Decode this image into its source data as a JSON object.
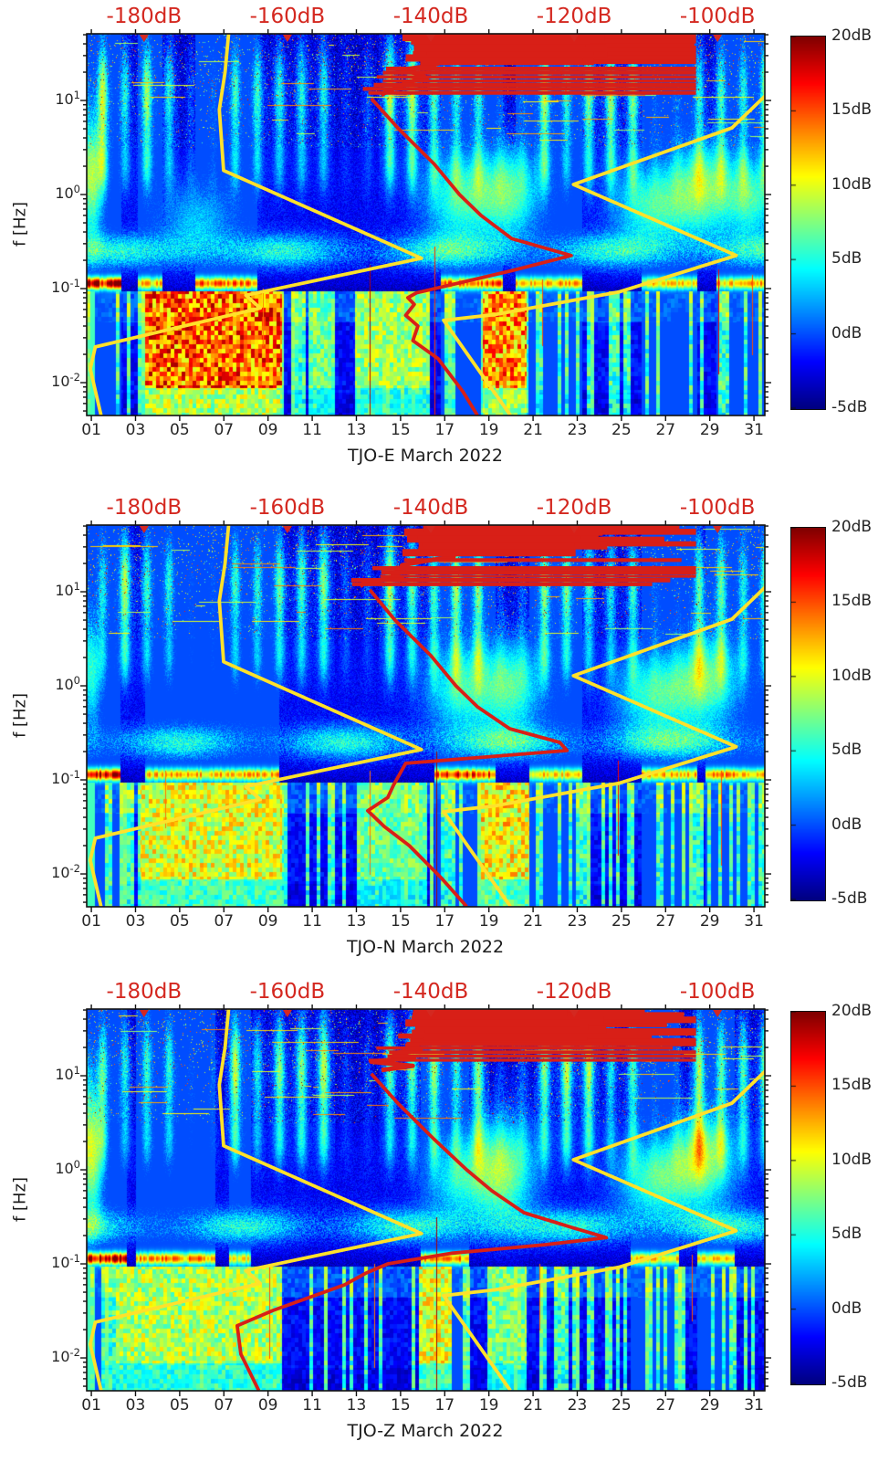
{
  "figure": {
    "description": "Seismic noise power spectrograms for station TJO components E, N, Z, March 2022, with New Low/High Noise Model curves (yellow) and station median PSD (red) plotted against the top dB axis."
  },
  "colors": {
    "top_axis_red": "#d42820",
    "curve_red": "#d81f17",
    "curve_yellow": "#ffe12b",
    "axis_text": "#262626",
    "spine": "#111111"
  },
  "chart_data": {
    "type": "heatmap",
    "shared": {
      "ylabel": "f [Hz]",
      "month": "March 2022",
      "x_tick_days": [
        1,
        3,
        5,
        7,
        9,
        11,
        13,
        15,
        17,
        19,
        21,
        23,
        25,
        27,
        29,
        31
      ],
      "x_tick_labels": [
        "01",
        "03",
        "05",
        "07",
        "09",
        "11",
        "13",
        "15",
        "17",
        "19",
        "21",
        "23",
        "25",
        "27",
        "29",
        "31"
      ],
      "x_range_days": [
        0.79,
        31.5
      ],
      "y_ticks": [
        {
          "base": "10",
          "exp": "1",
          "f": 10
        },
        {
          "base": "10",
          "exp": "0",
          "f": 1
        },
        {
          "base": "10",
          "exp": "-1",
          "f": 0.1
        },
        {
          "base": "10",
          "exp": "-2",
          "f": 0.01
        }
      ],
      "y_range_hz": [
        0.00447,
        51.2
      ],
      "top_axis": {
        "range_db": [
          -188,
          -93.4
        ],
        "labels": [
          {
            "text": "-180dB",
            "db": -180
          },
          {
            "text": "-160dB",
            "db": -160
          },
          {
            "text": "-140dB",
            "db": -140
          },
          {
            "text": "-120dB",
            "db": -120
          },
          {
            "text": "-100dB",
            "db": -100
          }
        ]
      },
      "colorbar": {
        "range_db": [
          -5,
          20
        ],
        "tick_values": [
          20,
          15,
          10,
          5,
          0,
          -5
        ],
        "tick_labels": [
          "20dB",
          "15dB",
          "10dB",
          "5dB",
          "0dB",
          "-5dB"
        ]
      }
    },
    "noise_models": {
      "nlnm_db_hz": [
        [
          -186,
          0.0045
        ],
        [
          -187.5,
          0.014
        ],
        [
          -186.8,
          0.024
        ],
        [
          -163.8,
          0.062
        ],
        [
          -165.8,
          0.085
        ],
        [
          -141.3,
          0.21
        ],
        [
          -168.9,
          1.8
        ],
        [
          -169.5,
          8
        ],
        [
          -168.7,
          20
        ],
        [
          -168.2,
          51
        ]
      ],
      "nhnm_db_hz": [
        [
          -93.2,
          11.5
        ],
        [
          -98,
          5.1
        ],
        [
          -120.1,
          1.28
        ],
        [
          -97.4,
          0.225
        ],
        [
          -113.8,
          0.092
        ],
        [
          -131,
          0.053
        ],
        [
          -138.2,
          0.046
        ],
        [
          -128.9,
          0.0045
        ]
      ]
    },
    "panels": [
      {
        "station": "TJO-E",
        "title": "TJO-E March 2022",
        "median_psd_db_hz": [
          [
            -133.5,
            0.0045
          ],
          [
            -135.5,
            0.008
          ],
          [
            -139,
            0.018
          ],
          [
            -142.5,
            0.028
          ],
          [
            -141.8,
            0.04
          ],
          [
            -143.5,
            0.052
          ],
          [
            -142.3,
            0.068
          ],
          [
            -143.2,
            0.08
          ],
          [
            -142,
            0.09
          ],
          [
            -128.7,
            0.155
          ],
          [
            -120.4,
            0.225
          ],
          [
            -128.7,
            0.34
          ],
          [
            -133,
            0.6
          ],
          [
            -136,
            1.0
          ],
          [
            -139.5,
            2.1
          ],
          [
            -144.5,
            5
          ],
          [
            -148.3,
            10.5
          ]
        ],
        "scribble": {
          "seed": 11,
          "reach_db": -104,
          "f_range": [
            11.5,
            48
          ]
        },
        "heatmap": {
          "seed": 7,
          "hot_low_freq_day_ranges": [
            [
              3.4,
              9.6,
              17.5
            ],
            [
              18.7,
              20.7,
              16
            ],
            [
              12.9,
              16.3,
              10
            ],
            [
              10.8,
              12.0,
              8.5
            ]
          ],
          "microseism_red_segments": [
            [
              0.79,
              2.35,
              19.5
            ],
            [
              3.1,
              4.2,
              13
            ],
            [
              5.7,
              8.5,
              15
            ],
            [
              16.8,
              19.6,
              15
            ],
            [
              20.2,
              23.2,
              13
            ],
            [
              25.9,
              28.4,
              12
            ],
            [
              29.3,
              31.5,
              13
            ]
          ],
          "clouds": [
            [
              1.0,
              0.17,
              10,
              0.35,
              0.5
            ],
            [
              5.8,
              -0.3,
              5,
              1.2,
              0.3
            ],
            [
              17.6,
              -0.05,
              7.5,
              1.1,
              0.33
            ],
            [
              19.9,
              0.02,
              8.5,
              1.0,
              0.35
            ],
            [
              26.3,
              -0.12,
              7.5,
              1.2,
              0.3
            ],
            [
              28.7,
              0.05,
              9,
              1.1,
              0.35
            ],
            [
              30.9,
              -0.05,
              7,
              0.8,
              0.3
            ]
          ],
          "spike_days": [
            [
              13.62,
              -0.75,
              -2.35,
              19
            ],
            [
              16.55,
              -0.55,
              -2.35,
              16
            ],
            [
              21.4,
              -0.9,
              -1.6,
              15
            ],
            [
              29.4,
              -0.8,
              -1.9,
              17
            ],
            [
              30.9,
              -0.85,
              -1.7,
              15
            ],
            [
              8.75,
              -1.0,
              -1.6,
              14
            ]
          ]
        }
      },
      {
        "station": "TJO-N",
        "title": "TJO-N March 2022",
        "median_psd_db_hz": [
          [
            -135,
            0.0045
          ],
          [
            -138.5,
            0.009
          ],
          [
            -143,
            0.02
          ],
          [
            -146.5,
            0.032
          ],
          [
            -148.8,
            0.047
          ],
          [
            -146,
            0.065
          ],
          [
            -145.2,
            0.088
          ],
          [
            -143.5,
            0.15
          ],
          [
            -121,
            0.205
          ],
          [
            -122,
            0.25
          ],
          [
            -129,
            0.35
          ],
          [
            -133.5,
            0.6
          ],
          [
            -136.5,
            1.0
          ],
          [
            -140,
            2.1
          ],
          [
            -145,
            5
          ],
          [
            -148.5,
            10.5
          ]
        ],
        "scribble": {
          "seed": 23,
          "reach_db": -110,
          "f_range": [
            11.5,
            48
          ]
        },
        "heatmap": {
          "seed": 19,
          "hot_low_freq_day_ranges": [
            [
              3.2,
              9.6,
              12
            ],
            [
              18.6,
              20.8,
              13
            ],
            [
              13.0,
              16.2,
              8.5
            ]
          ],
          "microseism_red_segments": [
            [
              0.79,
              2.3,
              18.5
            ],
            [
              3.4,
              9.5,
              13
            ],
            [
              16.5,
              19.3,
              17
            ],
            [
              20.8,
              23.2,
              12
            ],
            [
              25.9,
              28.4,
              13
            ],
            [
              28.8,
              31.5,
              14
            ]
          ],
          "clouds": [
            [
              1.0,
              0.15,
              7,
              0.3,
              0.45
            ],
            [
              17.7,
              -0.05,
              7,
              1.1,
              0.33
            ],
            [
              20.0,
              0.0,
              8,
              1.0,
              0.35
            ],
            [
              26.4,
              -0.1,
              7.5,
              1.2,
              0.3
            ],
            [
              28.8,
              0.05,
              8.5,
              1.1,
              0.35
            ]
          ],
          "spike_days": [
            [
              16.62,
              -0.7,
              -2.35,
              19
            ],
            [
              24.85,
              -0.8,
              -1.8,
              17
            ],
            [
              4.35,
              -0.9,
              -1.5,
              14
            ],
            [
              29.5,
              -0.9,
              -1.9,
              15
            ],
            [
              13.6,
              -0.9,
              -2.0,
              14
            ]
          ]
        }
      },
      {
        "station": "TJO-Z",
        "title": "TJO-Z March 2022",
        "median_psd_db_hz": [
          [
            -164,
            0.0045
          ],
          [
            -166.5,
            0.011
          ],
          [
            -167,
            0.022
          ],
          [
            -162,
            0.032
          ],
          [
            -152,
            0.06
          ],
          [
            -149,
            0.08
          ],
          [
            -146,
            0.1
          ],
          [
            -137,
            0.13
          ],
          [
            -124,
            0.16
          ],
          [
            -115.5,
            0.19
          ],
          [
            -120,
            0.24
          ],
          [
            -127,
            0.35
          ],
          [
            -131.5,
            0.6
          ],
          [
            -135,
            1.0
          ],
          [
            -139.5,
            2.1
          ],
          [
            -144.5,
            5
          ],
          [
            -148.3,
            10.5
          ]
        ],
        "scribble": {
          "seed": 37,
          "reach_db": -112,
          "f_range": [
            11.5,
            48
          ]
        },
        "heatmap": {
          "seed": 31,
          "hot_low_freq_day_ranges": [
            [
              2.1,
              9.6,
              10.5
            ],
            [
              15.8,
              17.3,
              12
            ],
            [
              18.9,
              20.7,
              9
            ]
          ],
          "microseism_red_segments": [
            [
              0.79,
              2.6,
              20
            ],
            [
              3.0,
              6.6,
              14
            ],
            [
              7.2,
              8.2,
              11
            ],
            [
              15.9,
              18.1,
              14
            ],
            [
              25.4,
              27.6,
              12
            ],
            [
              28.4,
              30.1,
              12
            ]
          ],
          "clouds": [
            [
              1.0,
              0.2,
              11,
              0.35,
              0.55
            ],
            [
              17.5,
              -0.1,
              6,
              1.0,
              0.3
            ],
            [
              19.6,
              0.0,
              10,
              1.0,
              0.4
            ],
            [
              26.5,
              -0.1,
              8,
              1.2,
              0.3
            ],
            [
              28.7,
              0.12,
              9.5,
              1.0,
              0.35
            ]
          ],
          "spike_days": [
            [
              16.62,
              -0.5,
              -2.35,
              19
            ],
            [
              9.05,
              -1.0,
              -2.0,
              15
            ],
            [
              21.3,
              -1.0,
              -1.7,
              14
            ],
            [
              28.2,
              -0.9,
              -1.6,
              15
            ],
            [
              13.8,
              -1.0,
              -2.1,
              14
            ]
          ]
        }
      }
    ]
  }
}
